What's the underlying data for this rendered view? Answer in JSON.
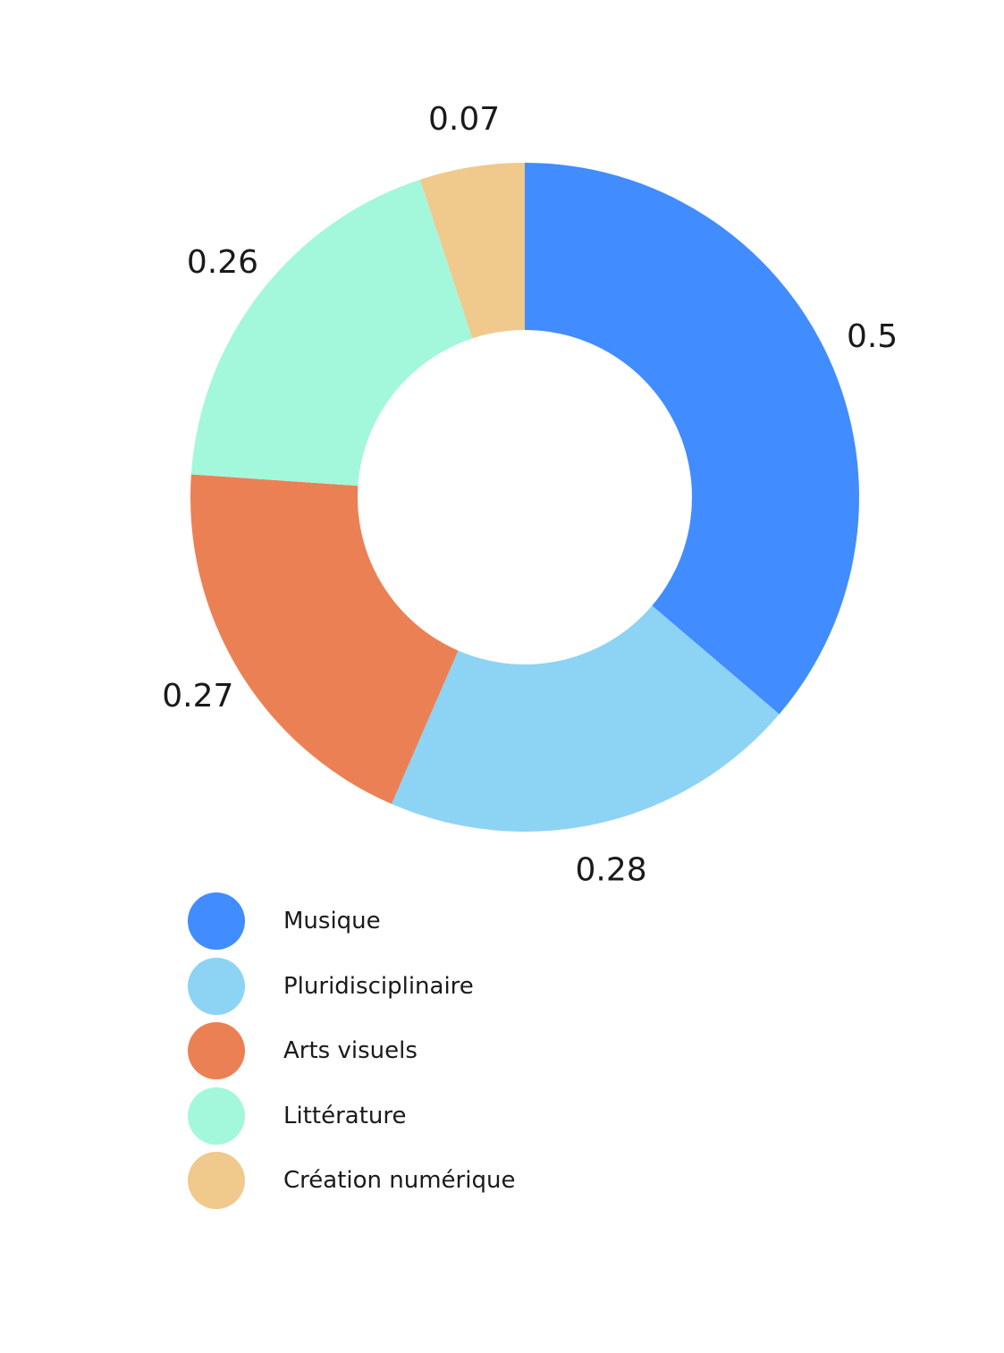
{
  "chart_data": {
    "type": "pie",
    "variant": "donut",
    "categories": [
      "Musique",
      "Pluridisciplinaire",
      "Arts visuels",
      "Littérature",
      "Création numérique"
    ],
    "values": [
      0.5,
      0.28,
      0.27,
      0.26,
      0.07
    ],
    "data_labels": [
      "0.5",
      "0.28",
      "0.27",
      "0.26",
      "0.07"
    ],
    "colors": [
      "#418cff",
      "#8dd3f4",
      "#ec8055",
      "#a3f7db",
      "#f0c98d"
    ],
    "legend_position": "bottom-left",
    "title": "",
    "xlabel": "",
    "ylabel": ""
  }
}
